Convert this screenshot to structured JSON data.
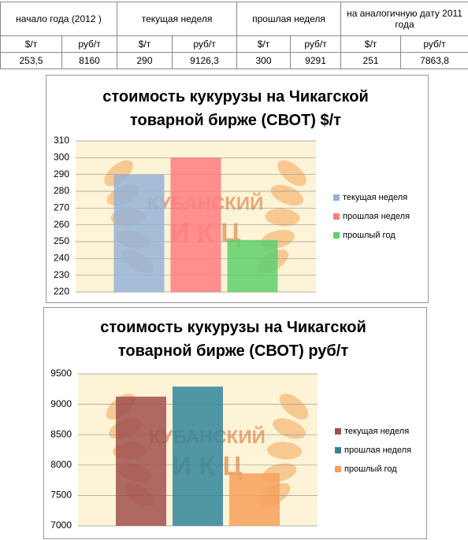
{
  "table": {
    "header": [
      [
        "начало года (2012 )",
        "текущая неделя",
        "прошлая неделя",
        "на аналогичную дату 2011 года"
      ],
      [
        "$/т",
        "руб/т",
        "$/т",
        "руб/т",
        "$/т",
        "руб/т",
        "$/т",
        "руб/т"
      ]
    ],
    "rows": [
      [
        "253,5",
        "8160",
        "290",
        "9126,3",
        "300",
        "9291",
        "251",
        "7863,8"
      ]
    ]
  },
  "watermark": {
    "line1": "КУБАНСКИЙ",
    "line2": "И К Ц"
  },
  "chart_data": [
    {
      "type": "bar",
      "title": "стоимость кукурузы на Чикагской товарной бирже (СВОТ) $/т",
      "categories": [
        null
      ],
      "series": [
        {
          "name": "текущая неделя",
          "color": "#95b3d7",
          "values": [
            290
          ]
        },
        {
          "name": "прошлая неделя",
          "color": "#ff7c80",
          "values": [
            300
          ]
        },
        {
          "name": "прошлый год",
          "color": "#5fcf6c",
          "values": [
            251
          ]
        }
      ],
      "ylim": [
        220,
        310
      ],
      "yticks": [
        220,
        230,
        240,
        250,
        260,
        270,
        280,
        290,
        300,
        310
      ],
      "grid": true,
      "legend": "right"
    },
    {
      "type": "bar",
      "title": "стоимость кукурузы на Чикагской товарной бирже (СВОТ) руб/т",
      "categories": [
        null
      ],
      "series": [
        {
          "name": "текущая неделя",
          "color": "#a0504f",
          "values": [
            9126.3
          ]
        },
        {
          "name": "прошлая неделя",
          "color": "#31859c",
          "values": [
            9291
          ]
        },
        {
          "name": "прошлый год",
          "color": "#f7a05c",
          "values": [
            7863.8
          ]
        }
      ],
      "ylim": [
        7000,
        9500
      ],
      "yticks": [
        7000,
        7500,
        8000,
        8500,
        9000,
        9500
      ],
      "grid": true,
      "legend": "right"
    }
  ]
}
